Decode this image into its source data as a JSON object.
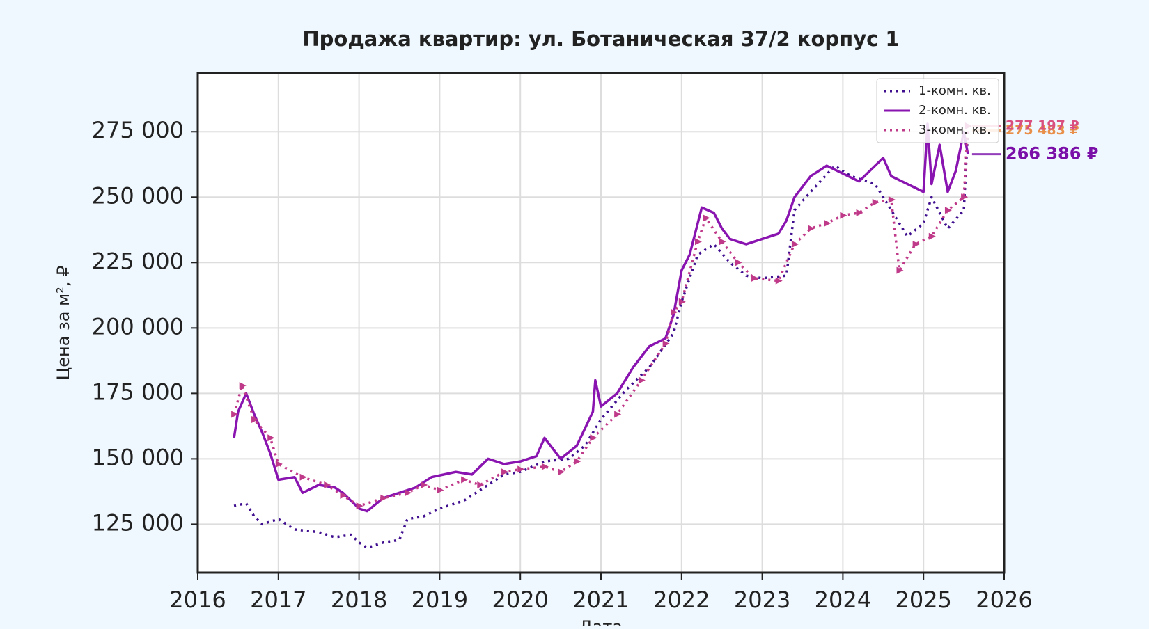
{
  "chart_data": {
    "type": "line",
    "title": "Продажа квартир: ул. Ботаническая 37/2 корпус 1",
    "xlabel": "Дата",
    "ylabel": "Цена за м², ₽",
    "xlim": [
      2016,
      2026
    ],
    "xticks": [
      2016,
      2017,
      2018,
      2019,
      2020,
      2021,
      2022,
      2023,
      2024,
      2025,
      2026
    ],
    "ylim": [
      106500,
      297400
    ],
    "yticks": [
      {
        "value": 125000,
        "label": "125 000"
      },
      {
        "value": 150000,
        "label": "150 000"
      },
      {
        "value": 175000,
        "label": "175 000"
      },
      {
        "value": 200000,
        "label": "200 000"
      },
      {
        "value": 225000,
        "label": "225 000"
      },
      {
        "value": 250000,
        "label": "250 000"
      },
      {
        "value": 275000,
        "label": "275 000"
      }
    ],
    "grid": true,
    "legend": "upper right",
    "series": [
      {
        "name": "1-комн. кв.",
        "color": "#3f0f8f",
        "style": "dotted",
        "end_label": "275 483 ₽",
        "label_color": "#e8904a",
        "x": [
          2016.45,
          2016.6,
          2016.7,
          2016.8,
          2017.0,
          2017.2,
          2017.5,
          2017.7,
          2017.9,
          2018.0,
          2018.1,
          2018.3,
          2018.5,
          2018.6,
          2018.8,
          2019.0,
          2019.3,
          2019.6,
          2019.8,
          2020.0,
          2020.3,
          2020.6,
          2020.8,
          2021.0,
          2021.3,
          2021.6,
          2021.9,
          2022.0,
          2022.2,
          2022.4,
          2022.6,
          2022.8,
          2023.0,
          2023.3,
          2023.4,
          2023.6,
          2023.9,
          2024.1,
          2024.4,
          2024.6,
          2024.8,
          2025.0,
          2025.1,
          2025.3,
          2025.5,
          2025.55
        ],
        "values": [
          132000,
          133000,
          128000,
          125000,
          127000,
          123000,
          122000,
          120000,
          121000,
          118000,
          116000,
          118000,
          119000,
          127000,
          128000,
          131000,
          134000,
          140000,
          144000,
          145000,
          149000,
          150000,
          155000,
          165000,
          176000,
          185000,
          198000,
          210000,
          228000,
          232000,
          225000,
          220000,
          219000,
          220000,
          245000,
          252000,
          262000,
          258000,
          255000,
          245000,
          235000,
          240000,
          250000,
          238000,
          245000,
          275483
        ]
      },
      {
        "name": "2-комн. кв.",
        "color": "#8a14b0",
        "style": "solid",
        "end_label": "266 386 ₽",
        "label_color": "#7a10a8",
        "x": [
          2016.45,
          2016.5,
          2016.6,
          2016.7,
          2016.8,
          2016.9,
          2017.0,
          2017.2,
          2017.3,
          2017.5,
          2017.7,
          2017.8,
          2018.0,
          2018.1,
          2018.3,
          2018.5,
          2018.7,
          2018.9,
          2019.2,
          2019.4,
          2019.6,
          2019.8,
          2020.0,
          2020.2,
          2020.3,
          2020.5,
          2020.7,
          2020.9,
          2020.93,
          2021.0,
          2021.2,
          2021.4,
          2021.6,
          2021.8,
          2021.9,
          2022.0,
          2022.1,
          2022.2,
          2022.25,
          2022.4,
          2022.5,
          2022.6,
          2022.8,
          2023.0,
          2023.2,
          2023.3,
          2023.4,
          2023.6,
          2023.8,
          2024.0,
          2024.2,
          2024.4,
          2024.5,
          2024.6,
          2024.8,
          2025.0,
          2025.05,
          2025.1,
          2025.2,
          2025.3,
          2025.4,
          2025.5,
          2025.55
        ],
        "values": [
          158000,
          168000,
          175000,
          167000,
          160000,
          152000,
          142000,
          143000,
          137000,
          140000,
          139000,
          137000,
          131000,
          130000,
          135000,
          137000,
          139000,
          143000,
          145000,
          144000,
          150000,
          148000,
          149000,
          151000,
          158000,
          150000,
          155000,
          168000,
          180000,
          170000,
          175000,
          185000,
          193000,
          196000,
          205000,
          222000,
          228000,
          240000,
          246000,
          244000,
          238000,
          234000,
          232000,
          234000,
          236000,
          241000,
          250000,
          258000,
          262000,
          259000,
          256000,
          262000,
          265000,
          258000,
          255000,
          252000,
          278000,
          255000,
          270000,
          252000,
          260000,
          275000,
          266386
        ]
      },
      {
        "name": "3-комн. кв.",
        "color": "#c03a8a",
        "style": "dotted",
        "marker": "triangle",
        "end_label": "277 197 ₽",
        "label_color": "#d95080",
        "x": [
          2016.45,
          2016.55,
          2016.7,
          2016.9,
          2017.0,
          2017.3,
          2017.6,
          2017.8,
          2018.0,
          2018.3,
          2018.6,
          2018.8,
          2019.0,
          2019.3,
          2019.5,
          2019.8,
          2020.0,
          2020.3,
          2020.5,
          2020.7,
          2020.9,
          2021.2,
          2021.5,
          2021.8,
          2021.9,
          2022.0,
          2022.2,
          2022.3,
          2022.5,
          2022.7,
          2022.9,
          2023.2,
          2023.4,
          2023.6,
          2023.8,
          2024.0,
          2024.2,
          2024.4,
          2024.6,
          2024.7,
          2024.9,
          2025.1,
          2025.3,
          2025.5,
          2025.55
        ],
        "values": [
          167000,
          178000,
          165000,
          158000,
          148000,
          143000,
          140000,
          136000,
          132000,
          135000,
          137000,
          140000,
          138000,
          142000,
          140000,
          145000,
          146000,
          147000,
          145000,
          149000,
          158000,
          167000,
          180000,
          194000,
          206000,
          210000,
          233000,
          242000,
          233000,
          225000,
          219000,
          218000,
          232000,
          238000,
          240000,
          243000,
          244000,
          248000,
          249000,
          222000,
          232000,
          235000,
          245000,
          250000,
          277197
        ]
      }
    ]
  }
}
